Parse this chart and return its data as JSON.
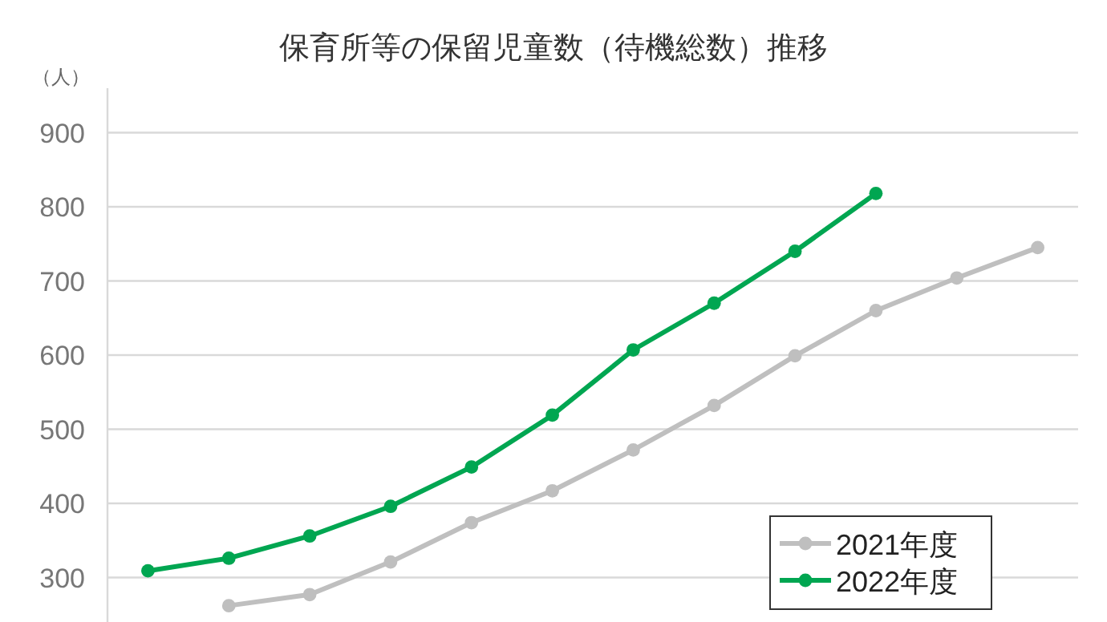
{
  "chart_data": {
    "type": "line",
    "title": "保育所等の保留児童数（待機総数）推移",
    "ylabel": "（人）",
    "categories": [
      null,
      null,
      null,
      null,
      null,
      null,
      null,
      null,
      null,
      null,
      null,
      null
    ],
    "series": [
      {
        "name": "2021年度",
        "color": "#bfbfbf",
        "values": [
          null,
          262,
          277,
          321,
          374,
          417,
          472,
          532,
          599,
          660,
          704,
          745
        ]
      },
      {
        "name": "2022年度",
        "color": "#00a651",
        "values": [
          309,
          326,
          356,
          396,
          449,
          519,
          607,
          670,
          740,
          818,
          null,
          null
        ]
      }
    ],
    "ylim": [
      240,
      960
    ],
    "yticks": [
      300,
      400,
      500,
      600,
      700,
      800,
      900
    ],
    "grid": "y",
    "legend": "bottom right",
    "marker": "circle",
    "tick_labels": "y"
  }
}
